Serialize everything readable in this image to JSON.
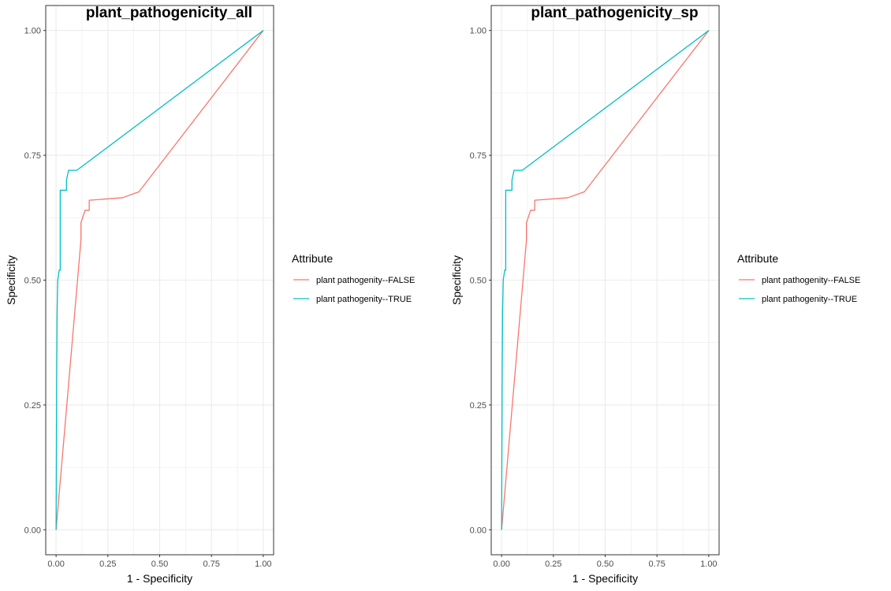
{
  "colors": {
    "series_false": "#F8766D",
    "series_true": "#00BFC4",
    "grid": "#EBEBEB",
    "panel_border": "#333333",
    "tick_text": "#4D4D4D"
  },
  "chart_data": [
    {
      "type": "line",
      "title": "plant_pathogenicity_all",
      "xlabel": "1 - Specificity",
      "ylabel": "Specificity",
      "xlim": [
        0,
        1
      ],
      "ylim": [
        0,
        1
      ],
      "x_ticks": [
        "0.00",
        "0.25",
        "0.50",
        "0.75",
        "1.00"
      ],
      "y_ticks": [
        "0.00",
        "0.25",
        "0.50",
        "0.75",
        "1.00"
      ],
      "grid": true,
      "legend": {
        "title": "Attribute",
        "position": "right",
        "entries": [
          "plant pathogenity--FALSE",
          "plant pathogenity--TRUE"
        ]
      },
      "series": [
        {
          "name": "plant pathogenity--FALSE",
          "x": [
            0,
            0.12,
            0.12,
            0.14,
            0.16,
            0.16,
            0.32,
            0.4,
            1.0
          ],
          "y": [
            0,
            0.58,
            0.615,
            0.64,
            0.64,
            0.66,
            0.665,
            0.677,
            1.0
          ]
        },
        {
          "name": "plant pathogenity--TRUE",
          "x": [
            0,
            0.003,
            0.005,
            0.008,
            0.015,
            0.02,
            0.02,
            0.04,
            0.05,
            0.05,
            0.06,
            0.07,
            0.1,
            1.0
          ],
          "y": [
            0,
            0.32,
            0.44,
            0.5,
            0.52,
            0.52,
            0.68,
            0.68,
            0.68,
            0.7,
            0.72,
            0.72,
            0.72,
            1.0
          ]
        }
      ]
    },
    {
      "type": "line",
      "title": "plant_pathogenicity_sp",
      "xlabel": "1 - Specificity",
      "ylabel": "Specificity",
      "xlim": [
        0,
        1
      ],
      "ylim": [
        0,
        1
      ],
      "x_ticks": [
        "0.00",
        "0.25",
        "0.50",
        "0.75",
        "1.00"
      ],
      "y_ticks": [
        "0.00",
        "0.25",
        "0.50",
        "0.75",
        "1.00"
      ],
      "grid": true,
      "legend": {
        "title": "Attribute",
        "position": "right",
        "entries": [
          "plant pathogenity--FALSE",
          "plant pathogenity--TRUE"
        ]
      },
      "series": [
        {
          "name": "plant pathogenity--FALSE",
          "x": [
            0,
            0.12,
            0.12,
            0.14,
            0.16,
            0.16,
            0.32,
            0.4,
            1.0
          ],
          "y": [
            0,
            0.58,
            0.615,
            0.64,
            0.64,
            0.66,
            0.665,
            0.677,
            1.0
          ]
        },
        {
          "name": "plant pathogenity--TRUE",
          "x": [
            0,
            0.003,
            0.005,
            0.008,
            0.015,
            0.02,
            0.02,
            0.04,
            0.05,
            0.05,
            0.06,
            0.07,
            0.1,
            1.0
          ],
          "y": [
            0,
            0.32,
            0.44,
            0.5,
            0.52,
            0.52,
            0.68,
            0.68,
            0.68,
            0.7,
            0.72,
            0.72,
            0.72,
            1.0
          ]
        }
      ]
    }
  ]
}
